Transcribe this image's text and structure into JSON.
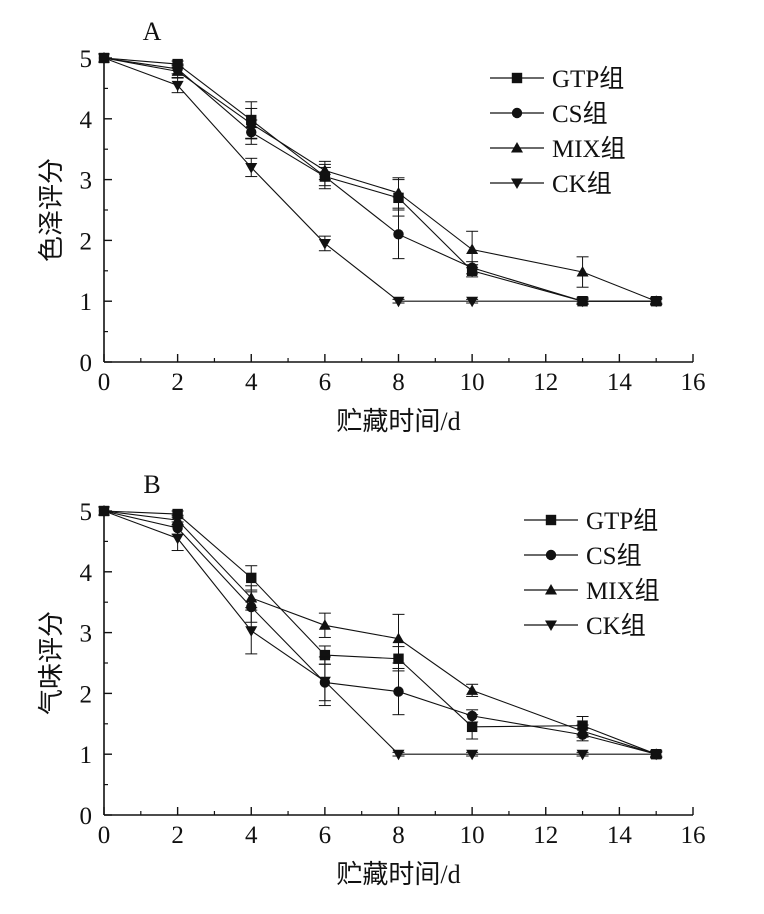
{
  "chart_data": [
    {
      "type": "line",
      "panel_label": "A",
      "xlabel": "贮藏时间/d",
      "ylabel": "色泽评分",
      "xlim": [
        0,
        16
      ],
      "ylim": [
        0,
        5
      ],
      "x_ticks": [
        "0",
        "2",
        "4",
        "6",
        "8",
        "10",
        "12",
        "14",
        "16"
      ],
      "y_ticks": [
        "0",
        "1",
        "2",
        "3",
        "4",
        "5"
      ],
      "grid": false,
      "legend_position": "top-right",
      "x": [
        0,
        2,
        4,
        6,
        8,
        10,
        13,
        15
      ],
      "series": [
        {
          "name": "GTP组",
          "marker": "square",
          "values": [
            5,
            4.9,
            3.98,
            3.05,
            2.7,
            1.5,
            1.0,
            1.0
          ],
          "errors": [
            0,
            0.05,
            0.3,
            0.2,
            0.3,
            0.1,
            0.05,
            0.05
          ]
        },
        {
          "name": "CS组",
          "marker": "circle",
          "values": [
            5,
            4.82,
            3.78,
            3.05,
            2.1,
            1.55,
            1.0,
            1.0
          ],
          "errors": [
            0,
            0.08,
            0.2,
            0.15,
            0.4,
            0.1,
            0.05,
            0.05
          ]
        },
        {
          "name": "MIX组",
          "marker": "triangle-up",
          "values": [
            5,
            4.78,
            3.92,
            3.15,
            2.78,
            1.85,
            1.48,
            1.0
          ],
          "errors": [
            0,
            0.1,
            0.25,
            0.15,
            0.25,
            0.3,
            0.25,
            0.05
          ]
        },
        {
          "name": "CK组",
          "marker": "triangle-down",
          "values": [
            5,
            4.55,
            3.2,
            1.95,
            1.0,
            1.0,
            1.0,
            1.0
          ],
          "errors": [
            0,
            0.12,
            0.15,
            0.12,
            0.03,
            0.03,
            0.03,
            0.03
          ]
        }
      ]
    },
    {
      "type": "line",
      "panel_label": "B",
      "xlabel": "贮藏时间/d",
      "ylabel": "气味评分",
      "xlim": [
        0,
        16
      ],
      "ylim": [
        0,
        5
      ],
      "x_ticks": [
        "0",
        "2",
        "4",
        "6",
        "8",
        "10",
        "12",
        "14",
        "16"
      ],
      "y_ticks": [
        "0",
        "1",
        "2",
        "3",
        "4",
        "5"
      ],
      "grid": false,
      "legend_position": "top-right",
      "x": [
        0,
        2,
        4,
        6,
        8,
        10,
        13,
        15
      ],
      "series": [
        {
          "name": "GTP组",
          "marker": "square",
          "values": [
            5,
            4.95,
            3.9,
            2.63,
            2.57,
            1.45,
            1.47,
            1.0
          ],
          "errors": [
            0,
            0.05,
            0.2,
            0.15,
            0.2,
            0.2,
            0.15,
            0.05
          ]
        },
        {
          "name": "CS组",
          "marker": "circle",
          "values": [
            5,
            4.72,
            3.42,
            2.18,
            2.03,
            1.63,
            1.32,
            1.0
          ],
          "errors": [
            0,
            0.1,
            0.25,
            0.3,
            0.38,
            0.1,
            0.1,
            0.05
          ]
        },
        {
          "name": "MIX组",
          "marker": "triangle-up",
          "values": [
            5,
            4.85,
            3.57,
            3.12,
            2.9,
            2.05,
            1.38,
            1.0
          ],
          "errors": [
            0,
            0.08,
            0.2,
            0.2,
            0.4,
            0.1,
            0.1,
            0.05
          ]
        },
        {
          "name": "CK组",
          "marker": "triangle-down",
          "values": [
            5,
            4.55,
            3.03,
            2.2,
            1.0,
            1.0,
            1.0,
            1.0
          ],
          "errors": [
            0,
            0.2,
            0.38,
            0.4,
            0.03,
            0.03,
            0.03,
            0.03
          ]
        }
      ]
    }
  ]
}
